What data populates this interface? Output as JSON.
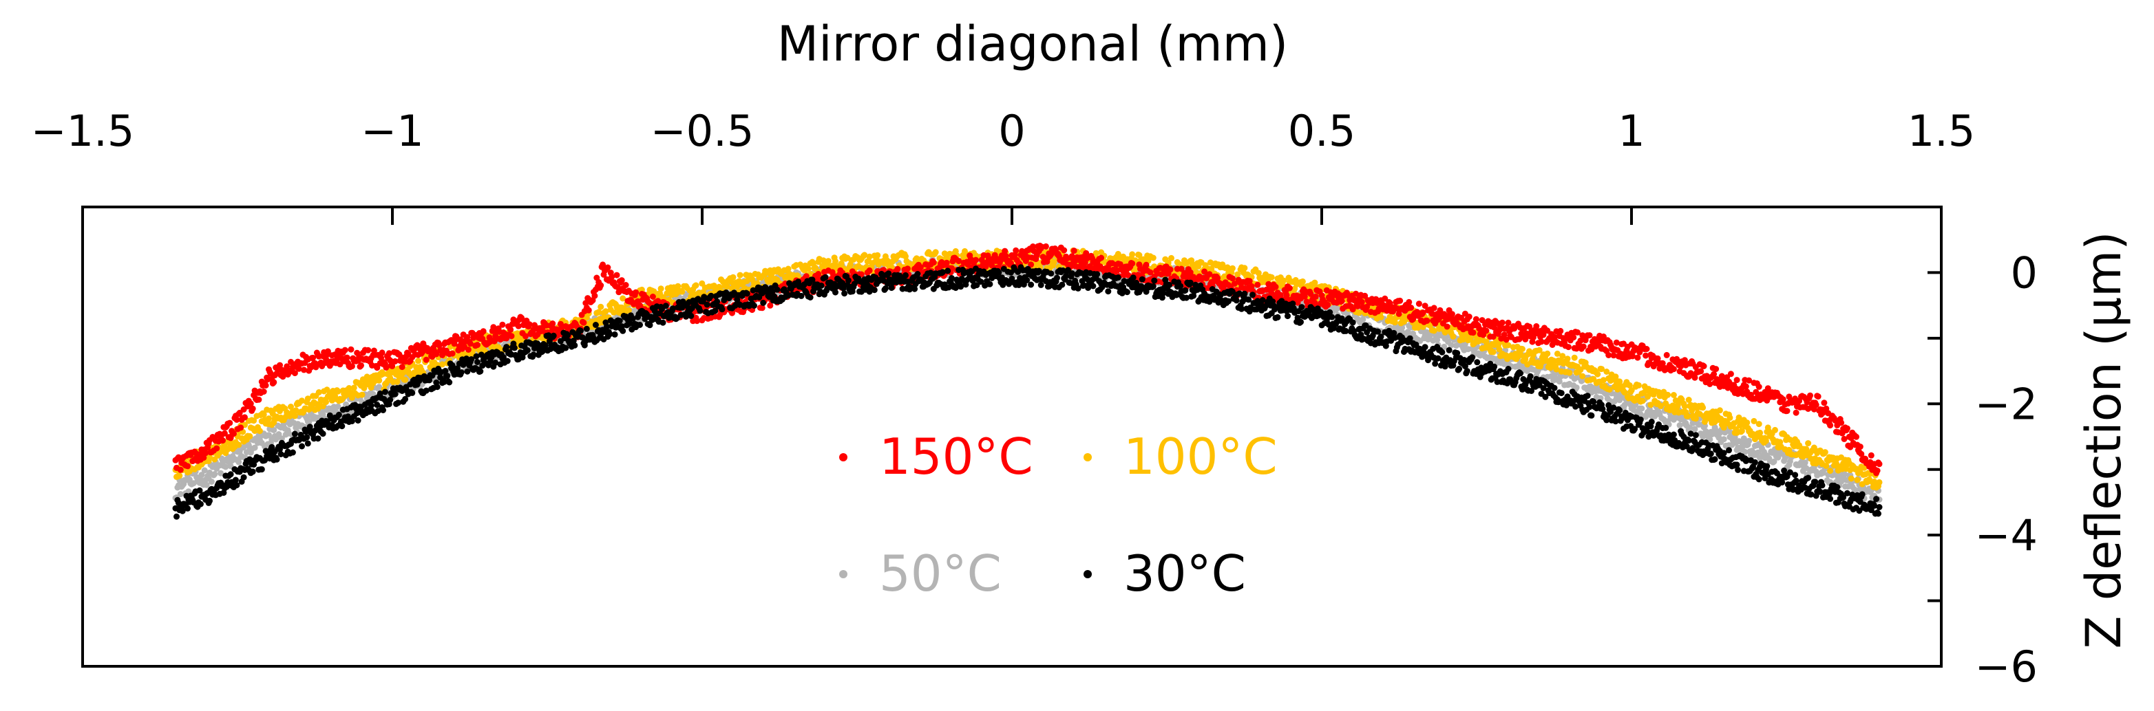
{
  "chart_data": {
    "type": "scatter",
    "xlabel": "Mirror diagonal (mm)",
    "ylabel": "Z deflection (µm)",
    "xlim": [
      -1.5,
      1.5
    ],
    "ylim": [
      -6,
      1
    ],
    "x_ticks": [
      -1.5,
      -1,
      -0.5,
      0,
      0.5,
      1,
      1.5
    ],
    "x_tick_labels": [
      "−1.5",
      "−1",
      "−0.5",
      "0",
      "0.5",
      "1",
      "1.5"
    ],
    "y_ticks": [
      0,
      -2,
      -4,
      -6
    ],
    "y_tick_labels": [
      "0",
      "−2",
      "−4",
      "−6"
    ],
    "x_axis_position": "top",
    "y_axis_position": "right",
    "grid": false,
    "legend_position": "center-bottom",
    "series": [
      {
        "name": "150°C",
        "color": "#ff0000",
        "x": [
          -1.35,
          -1.3,
          -1.25,
          -1.2,
          -1.15,
          -1.1,
          -1.05,
          -1.0,
          -0.95,
          -0.9,
          -0.85,
          -0.8,
          -0.75,
          -0.7,
          -0.68,
          -0.66,
          -0.62,
          -0.58,
          -0.55,
          -0.5,
          -0.4,
          -0.3,
          -0.2,
          -0.1,
          0.0,
          0.05,
          0.1,
          0.2,
          0.3,
          0.4,
          0.5,
          0.6,
          0.7,
          0.8,
          0.9,
          1.0,
          1.1,
          1.2,
          1.25,
          1.3,
          1.35,
          1.4
        ],
        "y": [
          -2.9,
          -2.7,
          -2.3,
          -1.6,
          -1.4,
          -1.3,
          -1.3,
          -1.35,
          -1.2,
          -1.1,
          -1.0,
          -0.8,
          -0.9,
          -0.9,
          -0.4,
          0.0,
          -0.3,
          -0.5,
          -0.6,
          -0.6,
          -0.4,
          -0.1,
          -0.1,
          0.1,
          0.2,
          0.3,
          0.2,
          0.0,
          -0.1,
          -0.3,
          -0.4,
          -0.5,
          -0.7,
          -0.9,
          -1.0,
          -1.2,
          -1.5,
          -1.8,
          -2.0,
          -2.0,
          -2.5,
          -3.0
        ]
      },
      {
        "name": "100°C",
        "color": "#ffc000",
        "x": [
          -1.35,
          -1.3,
          -1.25,
          -1.2,
          -1.1,
          -1.0,
          -0.9,
          -0.8,
          -0.7,
          -0.6,
          -0.5,
          -0.4,
          -0.3,
          -0.2,
          -0.1,
          0.0,
          0.1,
          0.2,
          0.3,
          0.4,
          0.5,
          0.6,
          0.7,
          0.8,
          0.9,
          1.0,
          1.1,
          1.2,
          1.3,
          1.4
        ],
        "y": [
          -3.0,
          -2.8,
          -2.5,
          -2.2,
          -1.9,
          -1.6,
          -1.2,
          -1.0,
          -0.8,
          -0.4,
          -0.3,
          -0.1,
          0.1,
          0.15,
          0.2,
          0.2,
          0.2,
          0.15,
          0.05,
          -0.1,
          -0.3,
          -0.6,
          -0.8,
          -1.2,
          -1.4,
          -1.8,
          -2.1,
          -2.4,
          -2.8,
          -3.2
        ]
      },
      {
        "name": "50°C",
        "color": "#b4b4b4",
        "x": [
          -1.35,
          -1.3,
          -1.25,
          -1.2,
          -1.1,
          -1.0,
          -0.9,
          -0.8,
          -0.7,
          -0.6,
          -0.5,
          -0.4,
          -0.3,
          -0.2,
          -0.1,
          0.0,
          0.1,
          0.2,
          0.3,
          0.4,
          0.5,
          0.6,
          0.7,
          0.8,
          0.9,
          1.0,
          1.1,
          1.2,
          1.3,
          1.4
        ],
        "y": [
          -3.3,
          -3.1,
          -2.8,
          -2.5,
          -2.1,
          -1.8,
          -1.4,
          -1.1,
          -0.9,
          -0.6,
          -0.4,
          -0.2,
          -0.05,
          0.0,
          0.1,
          0.1,
          0.05,
          0.0,
          -0.1,
          -0.3,
          -0.5,
          -0.8,
          -1.0,
          -1.3,
          -1.6,
          -2.0,
          -2.3,
          -2.7,
          -3.0,
          -3.4
        ]
      },
      {
        "name": "30°C",
        "color": "#000000",
        "x": [
          -1.35,
          -1.3,
          -1.25,
          -1.2,
          -1.1,
          -1.0,
          -0.9,
          -0.8,
          -0.7,
          -0.6,
          -0.5,
          -0.4,
          -0.3,
          -0.2,
          -0.1,
          0.0,
          0.1,
          0.2,
          0.3,
          0.4,
          0.5,
          0.6,
          0.7,
          0.8,
          0.9,
          1.0,
          1.1,
          1.2,
          1.3,
          1.4
        ],
        "y": [
          -3.6,
          -3.4,
          -3.1,
          -2.8,
          -2.3,
          -1.9,
          -1.5,
          -1.2,
          -1.0,
          -0.7,
          -0.5,
          -0.35,
          -0.2,
          -0.15,
          -0.1,
          -0.05,
          -0.1,
          -0.2,
          -0.3,
          -0.5,
          -0.7,
          -1.0,
          -1.3,
          -1.6,
          -1.9,
          -2.3,
          -2.6,
          -3.0,
          -3.3,
          -3.6
        ]
      }
    ]
  }
}
